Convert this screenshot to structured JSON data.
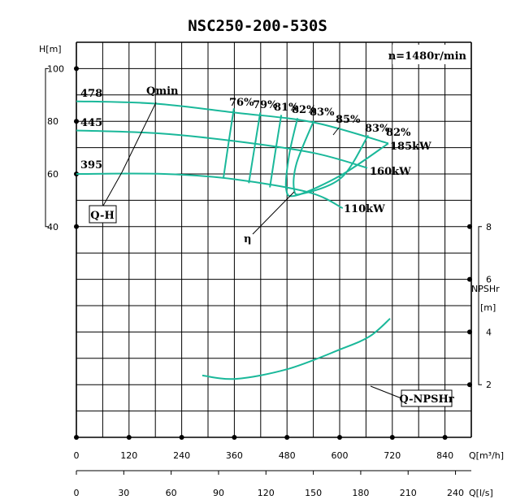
{
  "chart_data": {
    "type": "line",
    "title": "NSC250-200-530S",
    "speed_label": "n=1480r/min",
    "x_axis": {
      "label": "Q[m³/h]",
      "range": [
        0,
        900
      ],
      "ticks": [
        0,
        120,
        240,
        360,
        480,
        600,
        720,
        840
      ]
    },
    "x2_axis": {
      "label": "Q[l/s]",
      "range": [
        0,
        250
      ],
      "ticks": [
        0,
        30,
        60,
        90,
        120,
        150,
        180,
        210,
        240
      ]
    },
    "y_axis": {
      "label": "H[m]",
      "range": [
        -40,
        110
      ],
      "ticks": [
        40,
        60,
        80,
        100
      ]
    },
    "y2_axis": {
      "label_line1": "NPSHr",
      "label_line2": "[m]",
      "range": [
        0,
        10
      ],
      "ticks": [
        2,
        4,
        6,
        8
      ]
    },
    "grid": true,
    "colors": {
      "curve": "#1ab89a",
      "grid": "#000000"
    },
    "qh_curves": [
      {
        "name": "478",
        "power": "185kW",
        "points": [
          [
            0,
            87.6
          ],
          [
            180,
            86.7
          ],
          [
            360,
            83.3
          ],
          [
            540,
            79.6
          ],
          [
            711,
            71.6
          ]
        ]
      },
      {
        "name": "445",
        "power": "160kW",
        "points": [
          [
            0,
            76.5
          ],
          [
            180,
            75.5
          ],
          [
            360,
            72.5
          ],
          [
            540,
            68
          ],
          [
            663,
            62.3
          ]
        ]
      },
      {
        "name": "395",
        "power": "110kW",
        "points": [
          [
            0,
            60
          ],
          [
            200,
            60
          ],
          [
            360,
            58
          ],
          [
            530,
            53
          ],
          [
            607,
            47
          ]
        ]
      }
    ],
    "efficiency_curves": [
      {
        "name": "76%",
        "points": [
          [
            359,
            84.9
          ],
          [
            347,
            72
          ],
          [
            335,
            58.3
          ]
        ]
      },
      {
        "name": "79%",
        "points": [
          [
            419,
            83.3
          ],
          [
            406,
            70
          ],
          [
            393,
            56.5
          ]
        ]
      },
      {
        "name": "81%",
        "points": [
          [
            467,
            82.4
          ],
          [
            454,
            69
          ],
          [
            441,
            54.9
          ]
        ]
      },
      {
        "name": "82%",
        "points": [
          [
            504,
            81.2
          ],
          [
            485,
            67.3
          ],
          [
            478,
            54.3
          ],
          [
            502,
            51.9
          ],
          [
            604,
            59.6
          ],
          [
            711,
            71.6
          ]
        ],
        "right_label": "82%"
      },
      {
        "name": "83%",
        "points": [
          [
            541,
            80.2
          ],
          [
            502,
            64.2
          ],
          [
            496,
            54.3
          ],
          [
            515,
            52.5
          ],
          [
            604,
            58.6
          ],
          [
            665,
            74.7
          ]
        ],
        "right_label": "83%"
      }
    ],
    "best_efficiency_label": "85%",
    "npsh_curve": {
      "name": "Q-NPSHr",
      "points": [
        [
          287,
          2.35
        ],
        [
          363,
          2.22
        ],
        [
          481,
          2.59
        ],
        [
          600,
          3.33
        ],
        [
          668,
          3.83
        ],
        [
          715,
          4.51
        ]
      ]
    },
    "annotations": {
      "qh": "Q-H",
      "qmin": "Qmin",
      "eta": "η"
    }
  }
}
